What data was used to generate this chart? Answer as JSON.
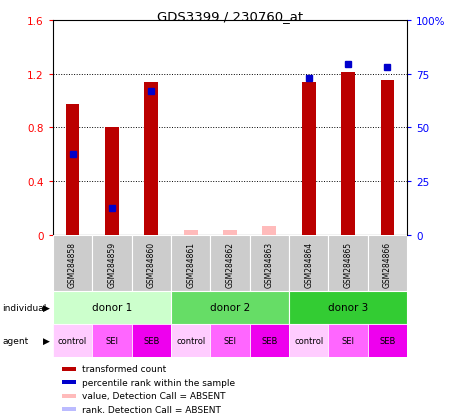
{
  "title": "GDS3399 / 230760_at",
  "samples": [
    "GSM284858",
    "GSM284859",
    "GSM284860",
    "GSM284861",
    "GSM284862",
    "GSM284863",
    "GSM284864",
    "GSM284865",
    "GSM284866"
  ],
  "bar_values": [
    0.97,
    0.8,
    1.14,
    null,
    null,
    null,
    1.14,
    1.21,
    1.15
  ],
  "bar_absent": [
    null,
    null,
    null,
    0.04,
    0.04,
    0.07,
    null,
    null,
    null
  ],
  "percentile_values": [
    0.6,
    0.2,
    1.07,
    null,
    null,
    null,
    1.17,
    1.27,
    1.25
  ],
  "percentile_absent": [
    null,
    null,
    null,
    null,
    null,
    null,
    null,
    null,
    null
  ],
  "ylim_left": [
    0,
    1.6
  ],
  "ylim_right": [
    0,
    100
  ],
  "yticks_left": [
    0.0,
    0.4,
    0.8,
    1.2,
    1.6
  ],
  "ytick_labels_left": [
    "0",
    "0.4",
    "0.8",
    "1.2",
    "1.6"
  ],
  "yticks_right": [
    0,
    25,
    50,
    75,
    100
  ],
  "ytick_labels_right": [
    "0",
    "25",
    "50",
    "75",
    "100%"
  ],
  "donors": [
    {
      "label": "donor 1",
      "start": 0,
      "end": 3,
      "color": "#ccffcc"
    },
    {
      "label": "donor 2",
      "start": 3,
      "end": 6,
      "color": "#66dd66"
    },
    {
      "label": "donor 3",
      "start": 6,
      "end": 9,
      "color": "#33cc33"
    }
  ],
  "agents": [
    "control",
    "SEI",
    "SEB",
    "control",
    "SEI",
    "SEB",
    "control",
    "SEI",
    "SEB"
  ],
  "agent_colors": [
    "#ffccff",
    "#ff66ff",
    "#ee00ee",
    "#ffccff",
    "#ff66ff",
    "#ee00ee",
    "#ffccff",
    "#ff66ff",
    "#ee00ee"
  ],
  "bar_color": "#bb0000",
  "percentile_color": "#0000cc",
  "absent_bar_color": "#ffbbbb",
  "absent_rank_color": "#bbbbff",
  "sample_row_color": "#cccccc",
  "legend_items": [
    {
      "color": "#bb0000",
      "label": "transformed count"
    },
    {
      "color": "#0000cc",
      "label": "percentile rank within the sample"
    },
    {
      "color": "#ffbbbb",
      "label": "value, Detection Call = ABSENT"
    },
    {
      "color": "#bbbbff",
      "label": "rank, Detection Call = ABSENT"
    }
  ]
}
